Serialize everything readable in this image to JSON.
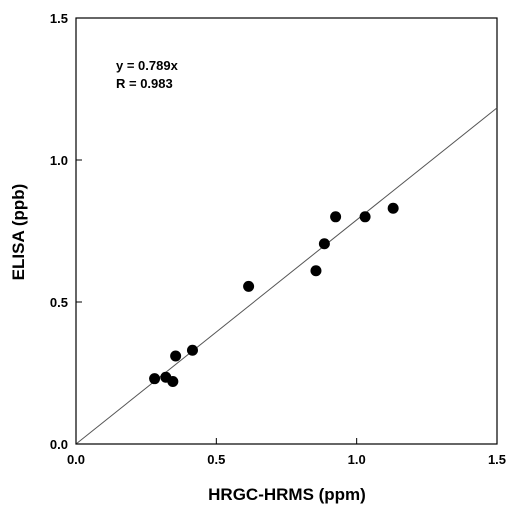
{
  "chart_data": {
    "type": "scatter",
    "title": "",
    "xlabel": "HRGC-HRMS (ppm)",
    "ylabel": "ELISA (ppb)",
    "xlim": [
      0.0,
      1.5
    ],
    "ylim": [
      0.0,
      1.5
    ],
    "x_ticks": [
      "0.0",
      "0.5",
      "1.0",
      "1.5"
    ],
    "y_ticks": [
      "0.0",
      "0.5",
      "1.0",
      "1.5"
    ],
    "grid": false,
    "legend": "none",
    "annotations": {
      "equation": "y = 0.789x",
      "r_value": "R = 0.983"
    },
    "fit_line": {
      "slope": 0.789,
      "intercept": 0
    },
    "points": [
      {
        "x": 0.28,
        "y": 0.23
      },
      {
        "x": 0.32,
        "y": 0.235
      },
      {
        "x": 0.345,
        "y": 0.22
      },
      {
        "x": 0.355,
        "y": 0.31
      },
      {
        "x": 0.415,
        "y": 0.33
      },
      {
        "x": 0.615,
        "y": 0.555
      },
      {
        "x": 0.855,
        "y": 0.61
      },
      {
        "x": 0.885,
        "y": 0.705
      },
      {
        "x": 0.925,
        "y": 0.8
      },
      {
        "x": 1.03,
        "y": 0.8
      },
      {
        "x": 1.13,
        "y": 0.83
      }
    ],
    "colors": {
      "points": "#000000",
      "line": "#555555",
      "axes": "#000000"
    }
  }
}
